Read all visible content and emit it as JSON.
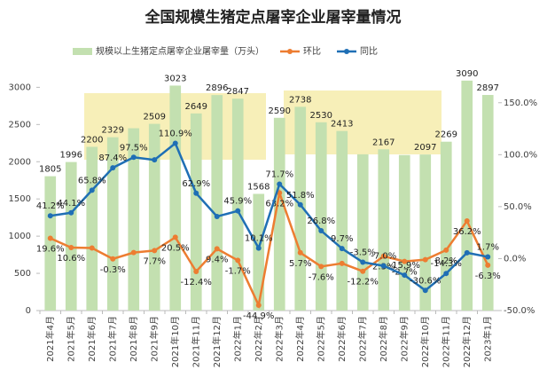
{
  "chart_data": {
    "type": "bar",
    "title": "全国规模生猪定点屠宰企业屠宰量情况",
    "categories": [
      "2021年4月",
      "2021年5月",
      "2021年6月",
      "2021年7月",
      "2021年8月",
      "2021年9月",
      "2021年10月",
      "2021年11月",
      "2021年12月",
      "2022年1月",
      "2022年2月",
      "2022年3月",
      "2022年4月",
      "2022年5月",
      "2022年6月",
      "2022年7月",
      "2022年8月",
      "2022年9月",
      "2022年10月",
      "2022年11月",
      "2022年12月",
      "2023年1月"
    ],
    "series": [
      {
        "name": "规模以上生猪定点屠宰企业屠宰量（万头）",
        "type": "bar",
        "color": "#c3e0b0",
        "values": [
          1805,
          1996,
          2200,
          2329,
          2450,
          2509,
          3023,
          2649,
          2896,
          2847,
          1568,
          2590,
          2738,
          2530,
          2413,
          2100,
          2167,
          2090,
          2097,
          2269,
          3090,
          2897
        ],
        "value_labels": [
          "1805",
          "1996",
          "2200",
          "2329",
          null,
          "2509",
          "3023",
          "2649",
          "2896",
          "2847",
          "1568",
          "2590",
          "2738",
          "2530",
          "2413",
          null,
          "2167",
          null,
          "2097",
          "2269",
          "3090",
          "2897"
        ]
      },
      {
        "name": "环比",
        "type": "line",
        "axis": "y2",
        "color": "#ed7d31",
        "values": [
          19.6,
          10.6,
          10.2,
          -0.3,
          5.8,
          7.7,
          20.5,
          -12.4,
          9.4,
          -1.7,
          -44.9,
          63.2,
          5.7,
          -7.6,
          -4.6,
          -12.2,
          2.3,
          -2.7,
          -1.0,
          8.2,
          36.2,
          -6.3
        ],
        "value_labels": [
          "19.6%",
          "10.6%",
          null,
          "-0.3%",
          null,
          "7.7%",
          "20.5%",
          "-12.4%",
          "9.4%",
          "-1.7%",
          "-44.9%",
          "63.2%",
          "5.7%",
          "-7.6%",
          null,
          "-12.2%",
          "2.3%",
          "-2.7%",
          null,
          "8.2%",
          "36.2%",
          "-6.3%"
        ]
      },
      {
        "name": "同比",
        "type": "line",
        "axis": "y2",
        "color": "#1f6fb5",
        "values": [
          41.2,
          44.1,
          65.8,
          87.4,
          97.5,
          95.0,
          110.9,
          62.9,
          40.5,
          45.9,
          10.1,
          71.7,
          51.8,
          26.8,
          9.7,
          -3.5,
          -7.0,
          -15.9,
          -30.6,
          -14.3,
          5.6,
          1.7
        ],
        "value_labels": [
          "41.2%",
          "44.1%",
          "65.8%",
          "87.4%",
          "97.5%",
          null,
          "110.9%",
          "62.9%",
          null,
          "45.9%",
          "10.1%",
          "71.7%",
          "51.8%",
          "26.8%",
          "9.7%",
          "-3.5%",
          "-7.0%",
          "-15.9%",
          "-30.6%",
          "-14.3%",
          null,
          "1.7%"
        ]
      }
    ],
    "ylim": [
      0,
      3100
    ],
    "yticks": [
      0,
      500,
      1000,
      1500,
      2000,
      2500,
      3000
    ],
    "y2lim": [
      -50,
      172
    ],
    "y2ticks": [
      {
        "value": -50,
        "label": "-50.0%"
      },
      {
        "value": 0,
        "label": "0.0%"
      },
      {
        "value": 50,
        "label": "50.0%"
      },
      {
        "value": 100,
        "label": "100.0%"
      },
      {
        "value": 150,
        "label": "150.0%"
      }
    ],
    "grid": false,
    "legend": "top"
  }
}
